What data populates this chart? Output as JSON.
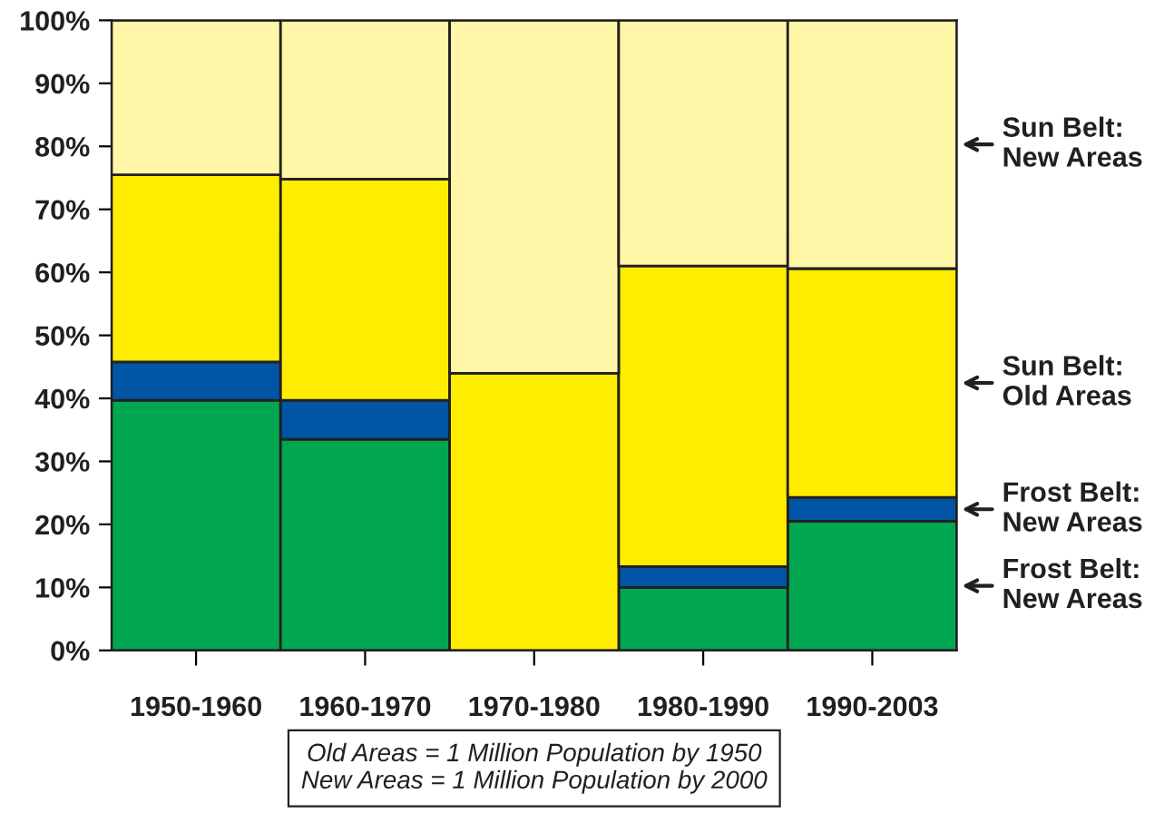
{
  "chart_data": {
    "type": "bar",
    "stacked": true,
    "categories": [
      "1950-1960",
      "1960-1970",
      "1970-1980",
      "1980-1990",
      "1990-2003"
    ],
    "series": [
      {
        "name": "Frost Belt: New Areas",
        "color": "#00a650",
        "values": [
          39.7,
          33.5,
          0,
          10,
          20.5
        ]
      },
      {
        "name": "Frost Belt: New Areas",
        "color": "#0055a5",
        "values": [
          6.1,
          6.2,
          0,
          3.3,
          3.8
        ]
      },
      {
        "name": "Sun Belt: Old Areas",
        "color": "#ffed00",
        "values": [
          29.7,
          35.1,
          44,
          47.7,
          36.3
        ]
      },
      {
        "name": "Sun Belt: New Areas",
        "color": "#fff6a8",
        "values": [
          24.5,
          25.2,
          56,
          39,
          39.4
        ]
      }
    ],
    "ylim": [
      0,
      100
    ],
    "yticks": [
      {
        "value": 0,
        "label": "0%"
      },
      {
        "value": 10,
        "label": "10%"
      },
      {
        "value": 20,
        "label": "20%"
      },
      {
        "value": 30,
        "label": "30%"
      },
      {
        "value": 40,
        "label": "40%"
      },
      {
        "value": 50,
        "label": "50%"
      },
      {
        "value": 60,
        "label": "60%"
      },
      {
        "value": 70,
        "label": "70%"
      },
      {
        "value": 80,
        "label": "80%"
      },
      {
        "value": 90,
        "label": "90%"
      },
      {
        "value": 100,
        "label": "100%"
      }
    ],
    "grid": false,
    "legend": "right",
    "annotations": [
      "Old Areas = 1 Million Population by 1950\nNew Areas = 1 Million Population by 2000"
    ]
  }
}
